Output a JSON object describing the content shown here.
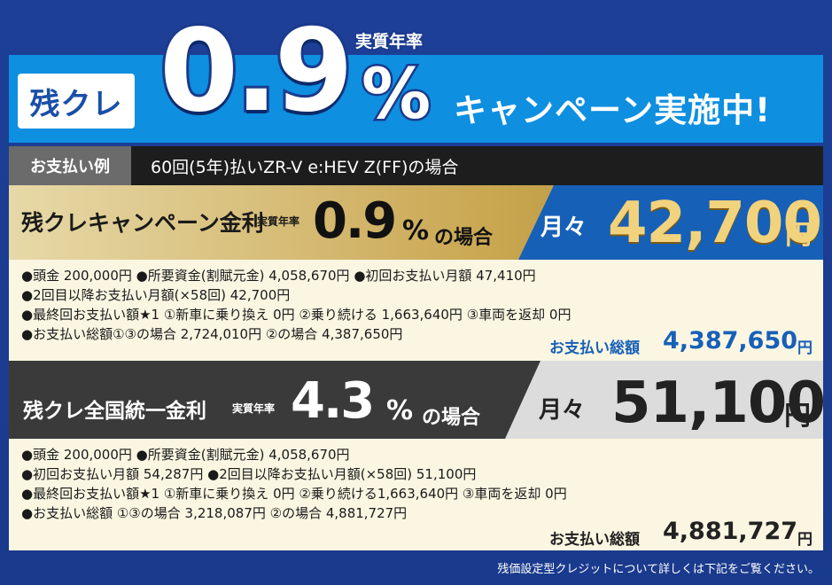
{
  "banner": {
    "badge": "残クレ",
    "rate_label": "実質年率",
    "rate": "0.9",
    "pct": "%",
    "campaign": "キャンペーン実施中!"
  },
  "example": {
    "label": "お支払い例",
    "text": "60回(5年)払いZR-V e:HEV Z(FF)の場合"
  },
  "plan1": {
    "title": "残クレキャンペーン金利",
    "rate_label": "実質年率",
    "rate": "0.9",
    "pct": "%",
    "case": "の場合",
    "monthly_label": "月々",
    "monthly_amount": "42,700",
    "yen": "円",
    "details": [
      "●頭金 200,000円 ●所要資金(割賦元金) 4,058,670円 ●初回お支払い月額 47,410円",
      "●2回目以降お支払い月額(×58回) 42,700円",
      "●最終回お支払い額★1 ①新車に乗り換え 0円 ②乗り続ける 1,663,640円 ③車両を返却 0円",
      "●お支払い総額①③の場合 2,724,010円 ②の場合 4,387,650円"
    ],
    "total_label": "お支払い総額",
    "total_amount": "4,387,650",
    "total_yen": "円",
    "accent": "#1760b8"
  },
  "plan2": {
    "title": "残クレ全国統一金利",
    "rate_label": "実質年率",
    "rate": "4.3",
    "pct": "%",
    "case": "の場合",
    "monthly_label": "月々",
    "monthly_amount": "51,100",
    "yen": "円",
    "details": [
      "●頭金 200,000円 ●所要資金(割賦元金) 4,058,670円",
      "●初回お支払い月額 54,287円 ●2回目以降お支払い月額(×58回) 51,100円",
      "●最終回お支払い額★1 ①新車に乗り換え 0円 ②乗り続ける1,663,640円 ③車両を返却 0円",
      "●お支払い総額 ①③の場合 3,218,087円 ②の場合 4,881,727円"
    ],
    "total_label": "お支払い総額",
    "total_amount": "4,881,727",
    "total_yen": "円"
  },
  "footer": "残価設定型クレジットについて詳しくは下記をご覧ください。"
}
